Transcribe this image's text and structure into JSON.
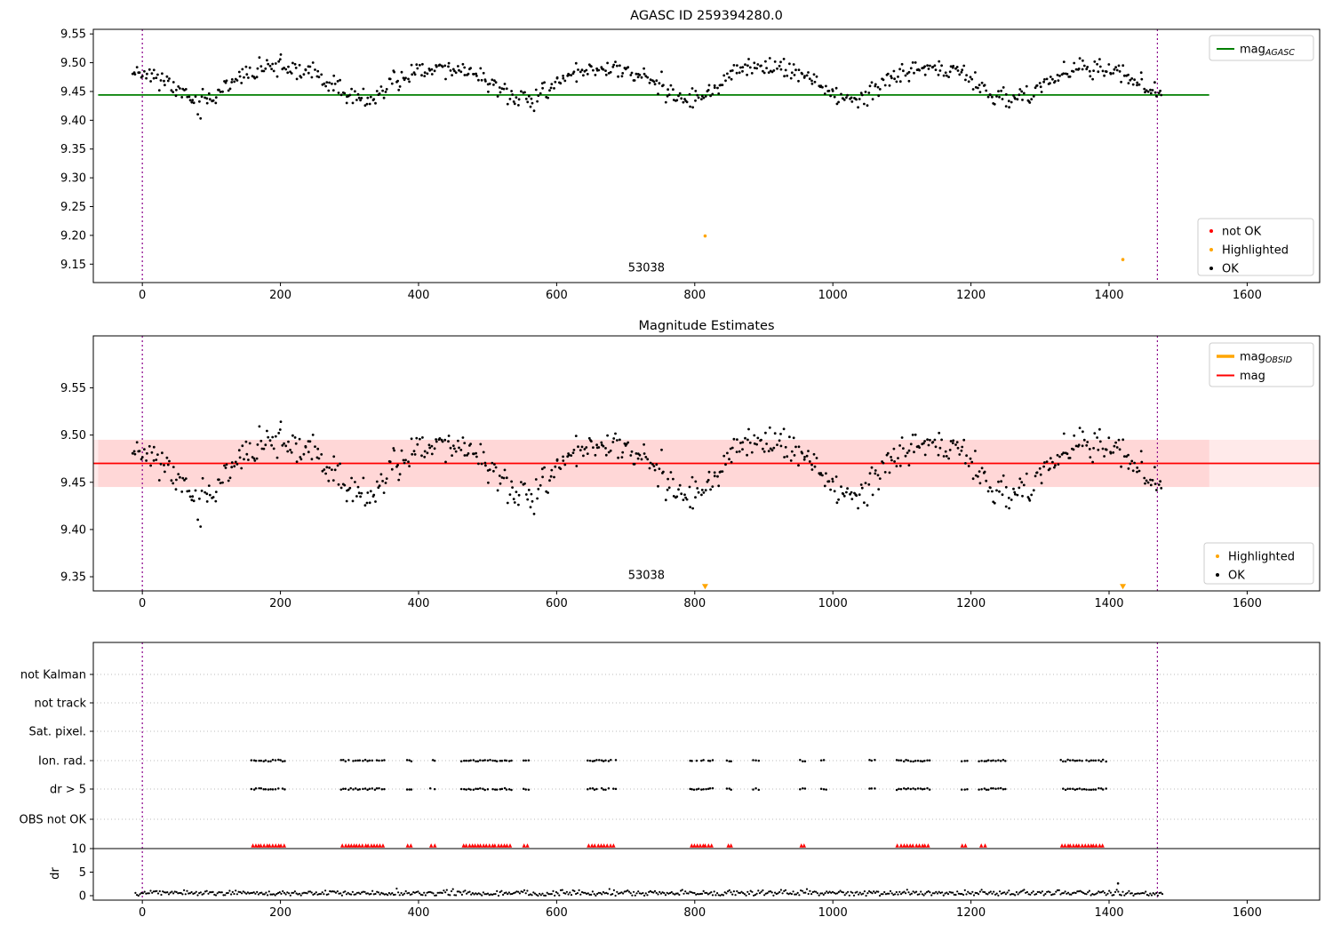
{
  "figure": {
    "bg": "#ffffff"
  },
  "chart_data": [
    {
      "type": "scatter",
      "title": "AGASC ID 259394280.0",
      "xlim": [
        -71,
        1705
      ],
      "ylim": [
        9.118,
        9.558
      ],
      "xticks": [
        0,
        200,
        400,
        600,
        800,
        1000,
        1200,
        1400,
        1600
      ],
      "xtick_labels": [
        "0",
        "200",
        "400",
        "600",
        "800",
        "1000",
        "1200",
        "1400",
        "1600"
      ],
      "yticks": [
        9.15,
        9.2,
        9.25,
        9.3,
        9.35,
        9.4,
        9.45,
        9.5,
        9.55
      ],
      "ytick_labels": [
        "9.15",
        "9.20",
        "9.25",
        "9.30",
        "9.35",
        "9.40",
        "9.45",
        "9.50",
        "9.55"
      ],
      "hline": {
        "value": 9.444,
        "x_start": -64,
        "x_end": 1545,
        "color": "#007f00"
      },
      "vlines": {
        "x": [
          0,
          1470
        ],
        "color": "#8b008b"
      },
      "annotation": {
        "text": "53038",
        "x": 730,
        "y": 9.137
      },
      "highlighted": {
        "color": "#ffa500",
        "points": [
          [
            815,
            9.199
          ],
          [
            1420,
            9.158
          ]
        ]
      },
      "scatter": {
        "color": "#000000",
        "seed": 11,
        "n": 700,
        "x_start": -14,
        "x_end": 1478,
        "mean": 9.468,
        "amplitude": 0.028,
        "period": 235,
        "peak_x": 200,
        "noise_sd": 0.0085
      },
      "legend_top": [
        {
          "label": "mag",
          "sub": "AGASC",
          "color": "#007f00",
          "type": "line",
          "lw": 2
        }
      ],
      "legend_bottom": [
        {
          "label": "not OK",
          "color": "#ff0000",
          "type": "dot"
        },
        {
          "label": "Highlighted",
          "color": "#ffa500",
          "type": "dot"
        },
        {
          "label": "OK",
          "color": "#000000",
          "type": "dot"
        }
      ]
    },
    {
      "type": "scatter",
      "title": "Magnitude Estimates",
      "xlim": [
        -71,
        1705
      ],
      "ylim": [
        9.335,
        9.605
      ],
      "xticks": [
        0,
        200,
        400,
        600,
        800,
        1000,
        1200,
        1400,
        1600
      ],
      "xtick_labels": [
        "0",
        "200",
        "400",
        "600",
        "800",
        "1000",
        "1200",
        "1400",
        "1600"
      ],
      "yticks": [
        9.35,
        9.4,
        9.45,
        9.5,
        9.55
      ],
      "ytick_labels": [
        "9.35",
        "9.40",
        "9.45",
        "9.50",
        "9.55"
      ],
      "hline": {
        "value": 9.47,
        "x_start": -71,
        "x_end": 1705,
        "color": "#ff0000"
      },
      "band": {
        "lo": 9.445,
        "hi": 9.495,
        "color": "#ff3030",
        "opacity": 0.1,
        "inner_x": [
          -64,
          1545
        ]
      },
      "vlines": {
        "x": [
          0,
          1470
        ],
        "color": "#8b008b"
      },
      "annotation": {
        "text": "53038",
        "x": 730,
        "y": 9.3475
      },
      "clipped": {
        "color": "#ffa500",
        "points": [
          [
            815,
            9.3395
          ],
          [
            1420,
            9.3395
          ]
        ]
      },
      "scatter": {
        "color": "#000000",
        "seed": 11,
        "n": 700,
        "x_start": -14,
        "x_end": 1478,
        "mean": 9.468,
        "amplitude": 0.028,
        "period": 235,
        "peak_x": 200,
        "noise_sd": 0.0085
      },
      "legend_top": [
        {
          "label": "mag",
          "sub": "OBSID",
          "color": "#ffa500",
          "type": "line",
          "lw": 3.5
        },
        {
          "label": "mag",
          "color": "#ff0000",
          "type": "line",
          "lw": 2
        }
      ],
      "legend_bottom": [
        {
          "label": "Highlighted",
          "color": "#ffa500",
          "type": "dot"
        },
        {
          "label": "OK",
          "color": "#000000",
          "type": "dot"
        }
      ]
    },
    {
      "type": "flags",
      "xlim": [
        -71,
        1705
      ],
      "xticks": [
        0,
        200,
        400,
        600,
        800,
        1000,
        1200,
        1400,
        1600
      ],
      "xtick_labels": [
        "0",
        "200",
        "400",
        "600",
        "800",
        "1000",
        "1200",
        "1400",
        "1600"
      ],
      "categories": [
        "not Kalman",
        "not track",
        "Sat. pixel.",
        "Ion. rad.",
        "dr > 5",
        "OBS not OK"
      ],
      "active_rows": [
        3,
        4
      ],
      "flag_color": "#000000",
      "flag_clusters": [
        [
          158,
          207
        ],
        [
          288,
          350
        ],
        [
          383,
          390
        ],
        [
          417,
          424
        ],
        [
          462,
          535
        ],
        [
          552,
          560
        ],
        [
          645,
          685
        ],
        [
          793,
          826
        ],
        [
          847,
          853
        ],
        [
          885,
          892
        ],
        [
          953,
          960
        ],
        [
          983,
          990
        ],
        [
          1053,
          1060
        ],
        [
          1092,
          1140
        ],
        [
          1187,
          1194
        ],
        [
          1212,
          1250
        ],
        [
          1330,
          1395
        ]
      ],
      "vlines": {
        "x": [
          0,
          1470
        ],
        "color": "#8b008b"
      },
      "dr": {
        "ylabel": "dr",
        "ticks": [
          0,
          5,
          10
        ],
        "tick_labels": [
          "0",
          "5",
          "10"
        ],
        "cap_value": 10,
        "red_color": "#ff0000",
        "red_clusters": [
          [
            160,
            205
          ],
          [
            290,
            348
          ],
          [
            384,
            389
          ],
          [
            418,
            423
          ],
          [
            465,
            532
          ],
          [
            553,
            558
          ],
          [
            647,
            682
          ],
          [
            795,
            824
          ],
          [
            848,
            852
          ],
          [
            955,
            959
          ],
          [
            1094,
            1138
          ],
          [
            1188,
            1192
          ],
          [
            1215,
            1220
          ],
          [
            1332,
            1390
          ]
        ],
        "trace": {
          "color": "#000000",
          "seed": 5,
          "x_start": -10,
          "x_end": 1478,
          "step": 2.2,
          "base": 0.55,
          "noise_sd": 0.3,
          "max": 2.2
        },
        "extra_points": [
          [
            1413,
            2.6
          ]
        ]
      }
    }
  ]
}
